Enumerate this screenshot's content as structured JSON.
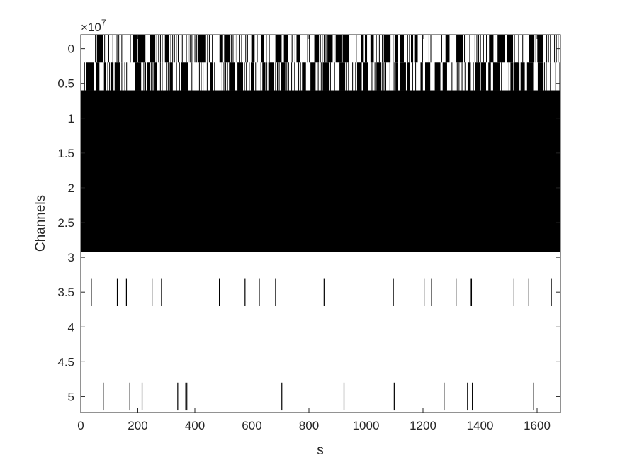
{
  "chart_data": {
    "type": "raster",
    "title": "",
    "xlabel": "s",
    "ylabel": "Channels",
    "y_exponent_label": "×10",
    "y_exponent_power": "7",
    "xlim": [
      0,
      1682
    ],
    "ylim": [
      -0.2,
      5.23
    ],
    "y_reversed": true,
    "x_ticks": [
      "0",
      "200",
      "400",
      "600",
      "800",
      "1000",
      "1200",
      "1400",
      "1600"
    ],
    "y_ticks": [
      "0",
      "0.5",
      "1",
      "1.5",
      "2",
      "2.5",
      "3",
      "3.5",
      "4",
      "4.5",
      "5"
    ],
    "grid": false,
    "line_color": "#000000",
    "rows": [
      {
        "y_range": [
          -0.2,
          0.2
        ],
        "pattern": "dense-spikes",
        "start": 50,
        "density": 0.55
      },
      {
        "y_range": [
          0.2,
          0.6
        ],
        "pattern": "dense-spikes",
        "start": 0,
        "density": 0.6
      },
      {
        "y_range": [
          0.6,
          2.92
        ],
        "pattern": "solid",
        "start": 0
      },
      {
        "y_range": [
          3.3,
          3.7
        ],
        "pattern": "spikes",
        "times": [
          37,
          128,
          160,
          250,
          283,
          486,
          576,
          626,
          683,
          853,
          1096,
          1204,
          1230,
          1316,
          1366,
          1370,
          1519,
          1571,
          1650
        ]
      },
      {
        "y_range": [
          4.8,
          5.2
        ],
        "pattern": "spikes",
        "times": [
          79,
          172,
          215,
          340,
          368,
          372,
          705,
          923,
          1099,
          1274,
          1356,
          1373,
          1588
        ]
      }
    ]
  }
}
